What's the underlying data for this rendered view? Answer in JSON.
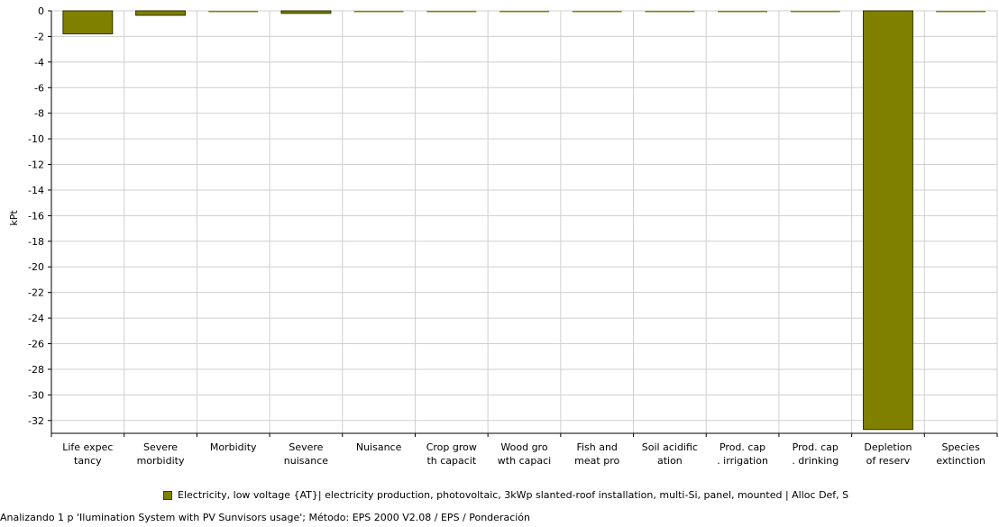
{
  "chart_data": {
    "type": "bar",
    "ylabel": "kPt",
    "ylim": [
      -33,
      0
    ],
    "yticks": [
      0,
      -2,
      -4,
      -6,
      -8,
      -10,
      -12,
      -14,
      -16,
      -18,
      -20,
      -22,
      -24,
      -26,
      -28,
      -30,
      -32
    ],
    "grid": true,
    "legend_position": "bottom",
    "categories": [
      [
        "Life expec",
        "tancy"
      ],
      [
        "Severe",
        "morbidity"
      ],
      [
        "Morbidity"
      ],
      [
        "Severe",
        "nuisance"
      ],
      [
        "Nuisance"
      ],
      [
        "Crop grow",
        "th capacit"
      ],
      [
        "Wood gro",
        "wth capaci"
      ],
      [
        "Fish and",
        "meat pro"
      ],
      [
        "Soil acidific",
        "ation"
      ],
      [
        "Prod. cap",
        ". irrigation"
      ],
      [
        "Prod. cap",
        ". drinking"
      ],
      [
        "Depletion",
        "of reserv"
      ],
      [
        "Species",
        "extinction"
      ]
    ],
    "series": [
      {
        "name": "Electricity, low voltage {AT}| electricity production, photovoltaic, 3kWp slanted-roof installation, multi-Si, panel, mounted | Alloc Def, S",
        "color": "#808000",
        "values": [
          -1.8,
          -0.35,
          -0.02,
          -0.2,
          -0.02,
          -0.02,
          -0.02,
          -0.02,
          -0.02,
          0,
          0,
          -32.7,
          -0.02
        ]
      }
    ]
  },
  "legend": {
    "label": "Electricity, low voltage {AT}| electricity production, photovoltaic, 3kWp slanted-roof installation, multi-Si, panel, mounted | Alloc Def, S"
  },
  "footer": {
    "text": "Analizando 1 p 'Ilumination System with PV Sunvisors usage';  Método: EPS 2000 V2.08 / EPS / Ponderación"
  }
}
